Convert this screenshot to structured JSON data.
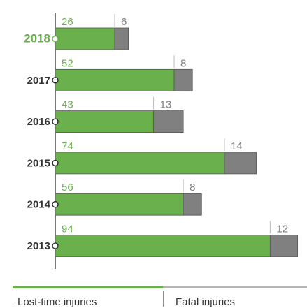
{
  "colors": {
    "lost_time": "#6ab04c",
    "fatal": "#808080",
    "axis": "#222222",
    "highlight_year": "#6ab04c",
    "year_text": "#333333",
    "fatal_text": "#7f7f7f"
  },
  "legend": {
    "lost_time_label": "Lost-time injuries",
    "fatal_label": "Fatal injuries"
  },
  "chart_data": {
    "type": "bar",
    "orientation": "horizontal",
    "stacked": true,
    "categories": [
      "2018",
      "2017",
      "2016",
      "2015",
      "2014",
      "2013"
    ],
    "highlighted_category": "2018",
    "series": [
      {
        "name": "Lost-time injuries",
        "values": [
          26,
          52,
          43,
          74,
          56,
          94
        ]
      },
      {
        "name": "Fatal injuries",
        "values": [
          6,
          8,
          13,
          14,
          8,
          12
        ]
      }
    ],
    "title": "",
    "xlabel": "",
    "ylabel": "",
    "grid": false,
    "legend_position": "bottom"
  }
}
